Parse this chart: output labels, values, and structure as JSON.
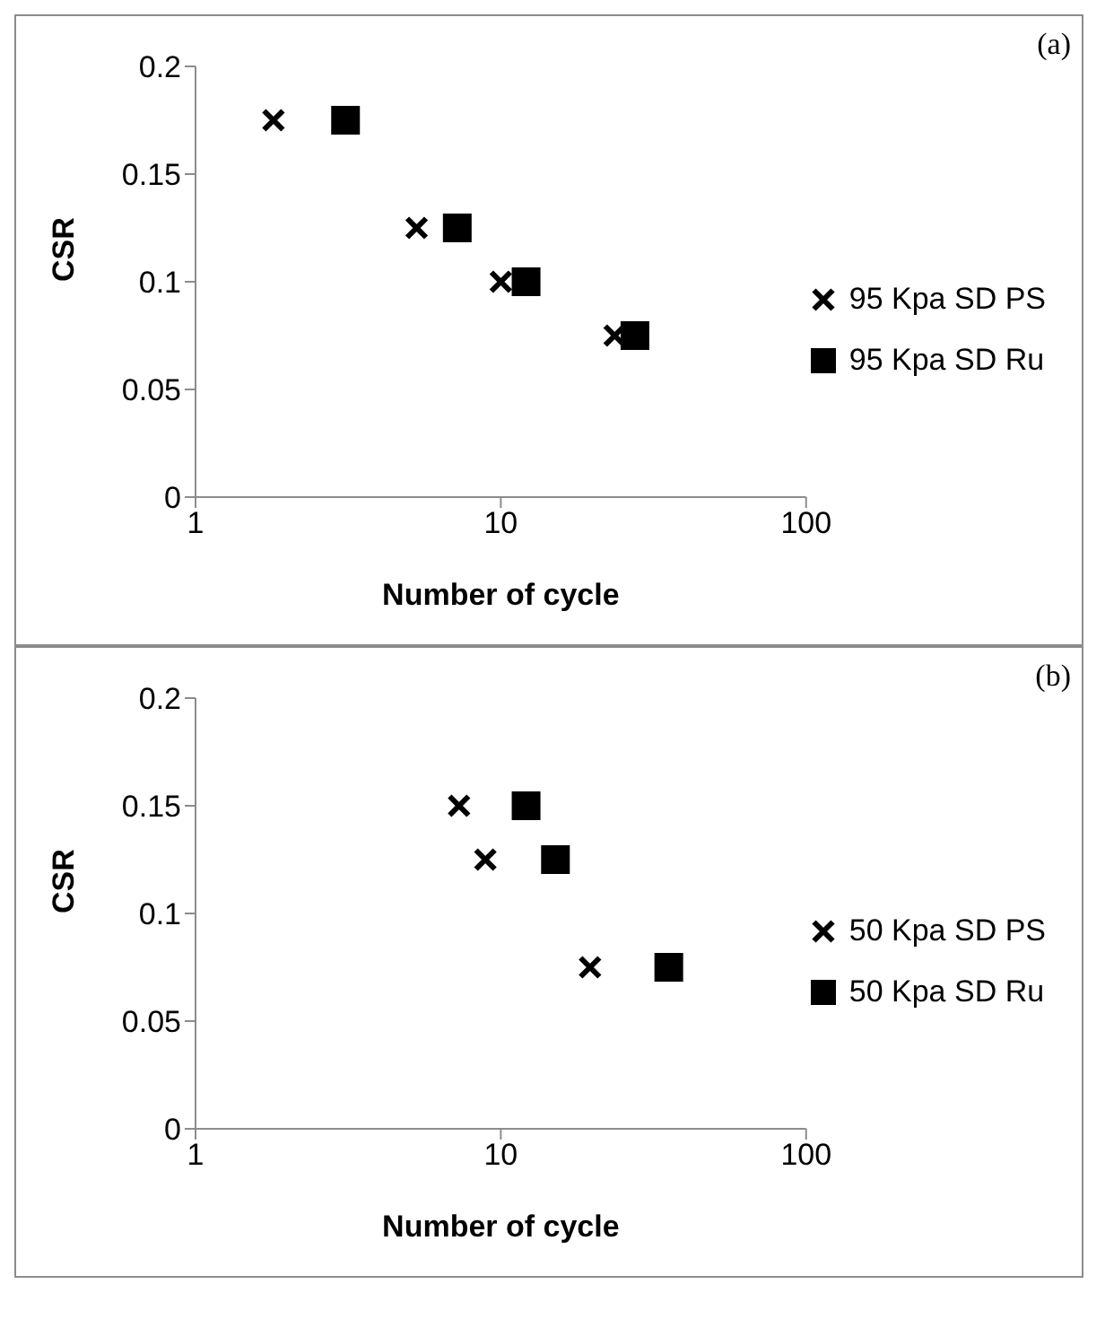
{
  "chart_data": [
    {
      "type": "scatter",
      "xlabel": "Number of cycle",
      "ylabel": "CSR",
      "log": "x",
      "xlim": [
        1,
        100
      ],
      "xticks": [
        1,
        10,
        100
      ],
      "ylim": [
        0,
        0.2
      ],
      "yticks": [
        0,
        0.05,
        0.1,
        0.15,
        0.2
      ],
      "legend": "right",
      "grid": false,
      "annotations": [
        "(a)"
      ],
      "series": [
        {
          "name": "95 Kpa SD PS",
          "color": "#000000",
          "marker": "cross",
          "x": [
            1.8,
            5.3,
            10,
            23.6
          ],
          "values": [
            0.175,
            0.125,
            0.1,
            0.075
          ]
        },
        {
          "name": "95 Kpa SD Ru",
          "color": "#000000",
          "marker": "square",
          "x": [
            3.1,
            7.2,
            12.1,
            27.5
          ],
          "values": [
            0.175,
            0.125,
            0.1,
            0.075
          ]
        }
      ]
    },
    {
      "type": "scatter",
      "xlabel": "Number of cycle",
      "ylabel": "CSR",
      "log": "x",
      "xlim": [
        1,
        100
      ],
      "xticks": [
        1,
        10,
        100
      ],
      "ylim": [
        0,
        0.2
      ],
      "yticks": [
        0,
        0.05,
        0.1,
        0.15,
        0.2
      ],
      "legend": "right",
      "grid": false,
      "annotations": [
        "(b)"
      ],
      "series": [
        {
          "name": "50 Kpa SD PS",
          "color": "#000000",
          "marker": "cross",
          "x": [
            7.3,
            8.9,
            19.6
          ],
          "values": [
            0.15,
            0.125,
            0.075
          ]
        },
        {
          "name": "50 Kpa SD Ru",
          "color": "#000000",
          "marker": "square",
          "x": [
            12.1,
            15.1,
            35.5
          ],
          "values": [
            0.15,
            0.125,
            0.075
          ]
        }
      ]
    }
  ]
}
